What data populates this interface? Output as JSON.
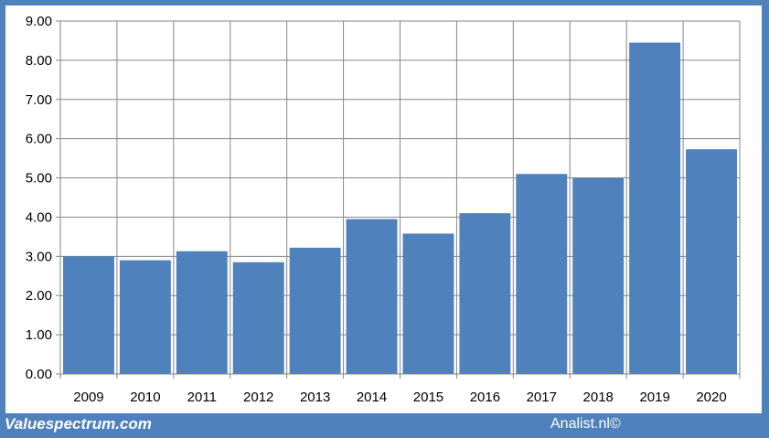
{
  "footer": {
    "brand": "Valuespectrum.com",
    "credit": "Analist.nl©"
  },
  "chart_data": {
    "type": "bar",
    "categories": [
      "2009",
      "2010",
      "2011",
      "2012",
      "2013",
      "2014",
      "2015",
      "2016",
      "2017",
      "2018",
      "2019",
      "2020"
    ],
    "values": [
      3.0,
      2.9,
      3.13,
      2.85,
      3.22,
      3.95,
      3.58,
      4.1,
      5.1,
      5.0,
      8.45,
      5.73
    ],
    "title": "",
    "xlabel": "",
    "ylabel": "",
    "ylim": [
      0,
      9
    ],
    "yticks": [
      "0.00",
      "1.00",
      "2.00",
      "3.00",
      "4.00",
      "5.00",
      "6.00",
      "7.00",
      "8.00",
      "9.00"
    ],
    "grid": true,
    "bar_color": "#4f81bd",
    "frame_color": "#4f81bd"
  }
}
